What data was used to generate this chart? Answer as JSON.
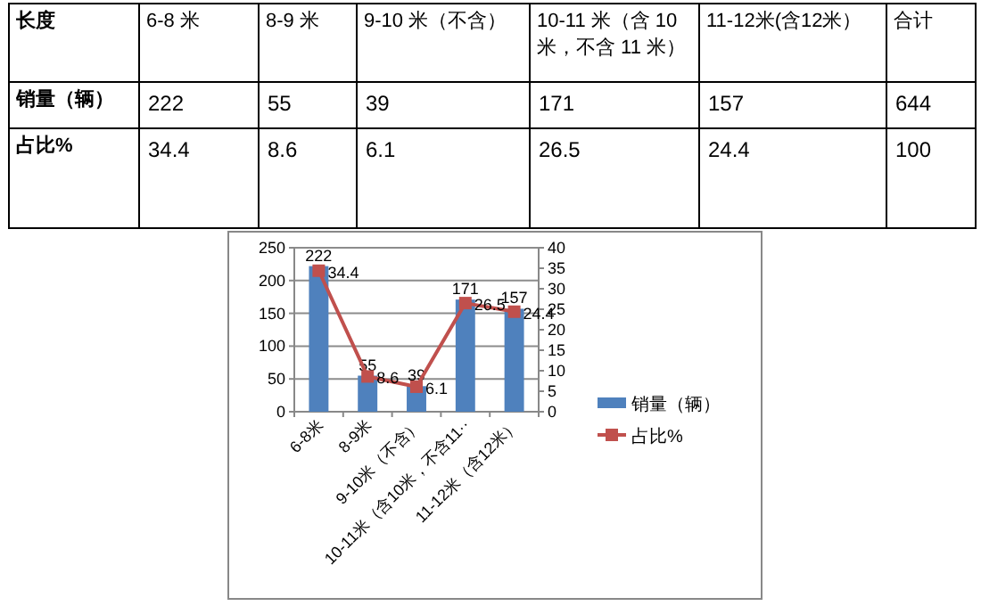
{
  "chart_data": {
    "type": "bar",
    "categories": [
      "6-8米",
      "8-9米",
      "9-10米（不含）",
      "10-11米（含10米，不含11··",
      "11-12米（含12米）"
    ],
    "series": [
      {
        "name": "销量（辆）",
        "color": "#4f81bd",
        "values": [
          222,
          55,
          39,
          171,
          157
        ]
      },
      {
        "name": "占比%",
        "type": "line",
        "axis": "y2",
        "color": "#c0504d",
        "marker": "square",
        "values": [
          34.4,
          8.6,
          6.1,
          26.5,
          24.4
        ]
      }
    ],
    "ylim": [
      0,
      250
    ],
    "yticks": [
      0,
      50,
      100,
      150,
      200,
      250
    ],
    "y2lim": [
      0,
      40
    ],
    "y2ticks": [
      0,
      5,
      10,
      15,
      20,
      25,
      30,
      35,
      40
    ],
    "grid": "y",
    "legend": "right",
    "data_labels": true,
    "annotations": [
      "长度",
      "6-8 米",
      "8-9 米",
      "9-10 米（不含）",
      "10-11 米（含 10 米，不含 11 米）",
      "11-12米(含12米）",
      "合计",
      "销量（辆）",
      "222",
      "55",
      "39",
      "171",
      "157",
      "644",
      "占比%",
      "34.4",
      "8.6",
      "6.1",
      "26.5",
      "24.4",
      "100"
    ]
  }
}
